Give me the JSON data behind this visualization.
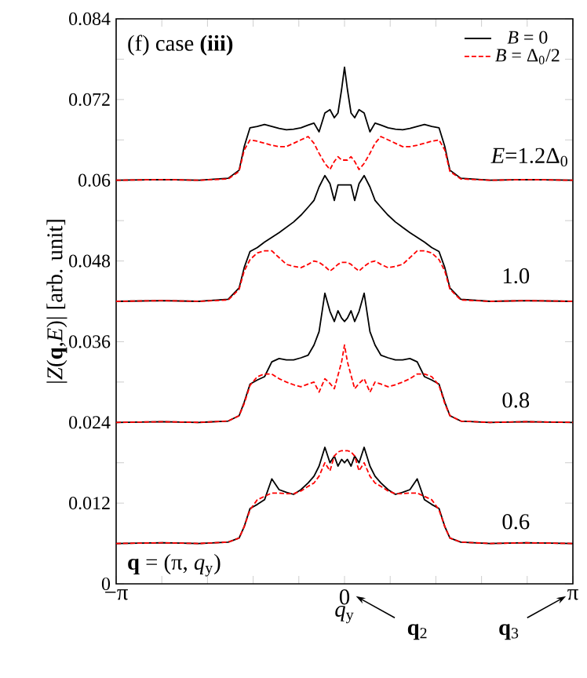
{
  "chart_data": {
    "type": "line",
    "xlabel": "*q*$_{y}$",
    "ylabel": "|*Z*(**q**,*E*)| [arb. unit]",
    "annotations": [
      "(f)  case **(iii)**",
      "*E*=1.2Δ$_{0}$",
      "1.0",
      "0.8",
      "0.6",
      "**q** = (π, *q*$_{y}$)",
      "**q**$_{2}$",
      "**q**$_{3}$"
    ],
    "x": [
      -3.1416,
      -2.5,
      -2.0,
      -1.6,
      -1.45,
      -1.38,
      -1.3,
      -1.2,
      -1.1,
      -1.0,
      -0.9,
      -0.8,
      -0.7,
      -0.6,
      -0.5,
      -0.42,
      -0.35,
      -0.27,
      -0.2,
      -0.14,
      -0.09,
      -0.04,
      0,
      0.04,
      0.09,
      0.14,
      0.2,
      0.27,
      0.35,
      0.42,
      0.5,
      0.6,
      0.7,
      0.8,
      0.9,
      1.0,
      1.1,
      1.2,
      1.3,
      1.38,
      1.45,
      1.6,
      2.0,
      2.5,
      3.1416
    ],
    "series": [
      {
        "name": "*B* = 0",
        "color": "#000000",
        "line_style": "solid",
        "values": [
          0.06,
          0.0601,
          0.06,
          0.0603,
          0.0615,
          0.065,
          0.0678,
          0.068,
          0.0683,
          0.068,
          0.0677,
          0.0675,
          0.0676,
          0.0678,
          0.0682,
          0.0685,
          0.0672,
          0.07,
          0.0705,
          0.0693,
          0.07,
          0.0735,
          0.0768,
          0.0735,
          0.07,
          0.0693,
          0.0705,
          0.07,
          0.0672,
          0.0685,
          0.0682,
          0.0678,
          0.0676,
          0.0675,
          0.0677,
          0.068,
          0.0683,
          0.068,
          0.0678,
          0.065,
          0.0615,
          0.0603,
          0.06,
          0.0601,
          0.06
        ]
      },
      {
        "name": "*B* = Δ$_{0}$/2",
        "color": "#ff0000",
        "line_style": "dashed",
        "values": [
          0.06,
          0.0601,
          0.06,
          0.0602,
          0.0613,
          0.0645,
          0.066,
          0.0658,
          0.0655,
          0.0652,
          0.065,
          0.065,
          0.0655,
          0.066,
          0.0665,
          0.0655,
          0.064,
          0.0625,
          0.0616,
          0.0628,
          0.0635,
          0.063,
          0.063,
          0.063,
          0.0635,
          0.0628,
          0.0616,
          0.0625,
          0.064,
          0.0655,
          0.0665,
          0.066,
          0.0655,
          0.065,
          0.065,
          0.0652,
          0.0655,
          0.0658,
          0.066,
          0.0645,
          0.0613,
          0.0602,
          0.06,
          0.0601,
          0.06
        ]
      },
      {
        "color": "#000000",
        "line_style": "solid",
        "values": [
          0.042,
          0.0421,
          0.042,
          0.0423,
          0.044,
          0.047,
          0.0494,
          0.05,
          0.0508,
          0.0515,
          0.0522,
          0.053,
          0.0538,
          0.0548,
          0.056,
          0.057,
          0.059,
          0.0607,
          0.0595,
          0.057,
          0.0593,
          0.0593,
          0.0593,
          0.0593,
          0.0593,
          0.057,
          0.0595,
          0.0607,
          0.059,
          0.057,
          0.056,
          0.0548,
          0.0538,
          0.053,
          0.0522,
          0.0515,
          0.0508,
          0.05,
          0.0494,
          0.047,
          0.044,
          0.0423,
          0.042,
          0.0421,
          0.042
        ]
      },
      {
        "color": "#ff0000",
        "line_style": "dashed",
        "values": [
          0.042,
          0.0421,
          0.042,
          0.0422,
          0.0438,
          0.0465,
          0.0482,
          0.0492,
          0.0495,
          0.0495,
          0.0485,
          0.0475,
          0.0472,
          0.047,
          0.0475,
          0.048,
          0.0478,
          0.0472,
          0.0465,
          0.047,
          0.0475,
          0.0478,
          0.0478,
          0.0478,
          0.0475,
          0.047,
          0.0465,
          0.0472,
          0.0478,
          0.048,
          0.0475,
          0.047,
          0.0472,
          0.0475,
          0.0485,
          0.0495,
          0.0495,
          0.0492,
          0.0482,
          0.0465,
          0.0438,
          0.0422,
          0.042,
          0.0421,
          0.042
        ]
      },
      {
        "color": "#000000",
        "line_style": "solid",
        "values": [
          0.024,
          0.0241,
          0.024,
          0.0242,
          0.025,
          0.027,
          0.0297,
          0.0303,
          0.0308,
          0.033,
          0.0335,
          0.0333,
          0.0333,
          0.0336,
          0.034,
          0.0355,
          0.0375,
          0.0432,
          0.0405,
          0.039,
          0.0406,
          0.0395,
          0.039,
          0.0395,
          0.0406,
          0.039,
          0.0405,
          0.0432,
          0.0375,
          0.0355,
          0.034,
          0.0336,
          0.0333,
          0.0333,
          0.0335,
          0.033,
          0.0308,
          0.0303,
          0.0297,
          0.027,
          0.025,
          0.0242,
          0.024,
          0.0241,
          0.024
        ]
      },
      {
        "color": "#ff0000",
        "line_style": "dashed",
        "values": [
          0.024,
          0.0241,
          0.024,
          0.0242,
          0.025,
          0.0268,
          0.0295,
          0.0308,
          0.0312,
          0.0312,
          0.0305,
          0.03,
          0.0296,
          0.0293,
          0.0297,
          0.03,
          0.0285,
          0.0305,
          0.0298,
          0.029,
          0.031,
          0.033,
          0.0355,
          0.033,
          0.031,
          0.029,
          0.0298,
          0.0305,
          0.0285,
          0.03,
          0.0297,
          0.0293,
          0.0296,
          0.03,
          0.0305,
          0.0312,
          0.0312,
          0.0308,
          0.0295,
          0.0268,
          0.025,
          0.0242,
          0.024,
          0.0241,
          0.024
        ]
      },
      {
        "color": "#000000",
        "line_style": "solid",
        "values": [
          0.006,
          0.0061,
          0.006,
          0.0062,
          0.0068,
          0.0085,
          0.0112,
          0.0118,
          0.0125,
          0.0156,
          0.014,
          0.0136,
          0.0133,
          0.014,
          0.015,
          0.016,
          0.0175,
          0.0203,
          0.018,
          0.019,
          0.0175,
          0.0185,
          0.018,
          0.0185,
          0.0175,
          0.019,
          0.018,
          0.0203,
          0.0175,
          0.016,
          0.015,
          0.014,
          0.0133,
          0.0136,
          0.014,
          0.0156,
          0.0125,
          0.0118,
          0.0112,
          0.0085,
          0.0068,
          0.0062,
          0.006,
          0.0061,
          0.006
        ]
      },
      {
        "color": "#ff0000",
        "line_style": "dashed",
        "values": [
          0.006,
          0.0061,
          0.006,
          0.0062,
          0.0068,
          0.0085,
          0.011,
          0.0125,
          0.013,
          0.0135,
          0.0135,
          0.0134,
          0.0134,
          0.0138,
          0.0145,
          0.015,
          0.016,
          0.018,
          0.0168,
          0.019,
          0.0196,
          0.0198,
          0.0198,
          0.0198,
          0.0196,
          0.019,
          0.0168,
          0.018,
          0.016,
          0.015,
          0.0145,
          0.0138,
          0.0134,
          0.0134,
          0.0135,
          0.0135,
          0.013,
          0.0125,
          0.011,
          0.0085,
          0.0068,
          0.0062,
          0.006,
          0.0061,
          0.006
        ]
      }
    ],
    "xlim": [
      -3.1416,
      3.1416
    ],
    "xticks": [
      {
        "value": -3.1416,
        "label": "−π"
      },
      {
        "value": -2.5133,
        "label": null
      },
      {
        "value": -1.885,
        "label": null
      },
      {
        "value": -1.2566,
        "label": null
      },
      {
        "value": -0.6283,
        "label": null
      },
      {
        "value": 0,
        "label": "0"
      },
      {
        "value": 0.6283,
        "label": null
      },
      {
        "value": 1.2566,
        "label": null
      },
      {
        "value": 1.885,
        "label": null
      },
      {
        "value": 2.5133,
        "label": null
      },
      {
        "value": 3.1416,
        "label": "π"
      }
    ],
    "ylim": [
      0,
      0.084
    ],
    "yticks": [
      0,
      {
        "value": 0.006,
        "label": null
      },
      0.012,
      {
        "value": 0.018,
        "label": null
      },
      0.024,
      {
        "value": 0.03,
        "label": null
      },
      0.036,
      {
        "value": 0.042,
        "label": null
      },
      0.048,
      {
        "value": 0.054,
        "label": null
      },
      0.06,
      {
        "value": 0.066,
        "label": null
      },
      0.072,
      {
        "value": 0.078,
        "label": null
      },
      0.084
    ],
    "legend": "top right",
    "grid": false,
    "marker": "none"
  }
}
